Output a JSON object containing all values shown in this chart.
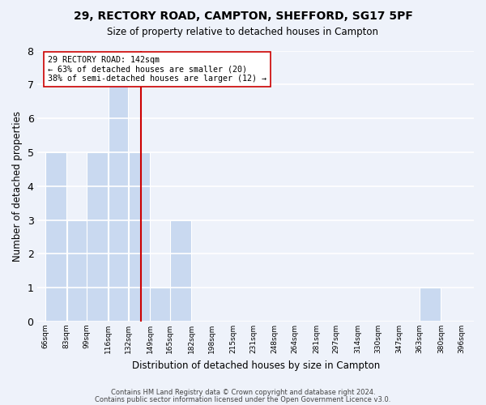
{
  "title": "29, RECTORY ROAD, CAMPTON, SHEFFORD, SG17 5PF",
  "subtitle": "Size of property relative to detached houses in Campton",
  "xlabel": "Distribution of detached houses by size in Campton",
  "ylabel": "Number of detached properties",
  "bar_edges": [
    66,
    83,
    99,
    116,
    132,
    149,
    165,
    182,
    198,
    215,
    231,
    248,
    264,
    281,
    297,
    314,
    330,
    347,
    363,
    380,
    396
  ],
  "bar_heights": [
    5,
    3,
    5,
    7,
    5,
    1,
    3,
    0,
    0,
    0,
    0,
    0,
    0,
    0,
    0,
    0,
    0,
    0,
    1,
    0
  ],
  "tick_labels": [
    "66sqm",
    "83sqm",
    "99sqm",
    "116sqm",
    "132sqm",
    "149sqm",
    "165sqm",
    "182sqm",
    "198sqm",
    "215sqm",
    "231sqm",
    "248sqm",
    "264sqm",
    "281sqm",
    "297sqm",
    "314sqm",
    "330sqm",
    "347sqm",
    "363sqm",
    "380sqm",
    "396sqm"
  ],
  "bar_color": "#c9d9f0",
  "bar_edge_color": "#ffffff",
  "property_line_x": 142,
  "property_line_color": "#cc0000",
  "annotation_line1": "29 RECTORY ROAD: 142sqm",
  "annotation_line2": "← 63% of detached houses are smaller (20)",
  "annotation_line3": "38% of semi-detached houses are larger (12) →",
  "ylim": [
    0,
    8
  ],
  "yticks": [
    0,
    1,
    2,
    3,
    4,
    5,
    6,
    7,
    8
  ],
  "footnote1": "Contains HM Land Registry data © Crown copyright and database right 2024.",
  "footnote2": "Contains public sector information licensed under the Open Government Licence v3.0.",
  "bg_color": "#eef2fa",
  "plot_bg_color": "#eef2fa",
  "grid_color": "#ffffff"
}
